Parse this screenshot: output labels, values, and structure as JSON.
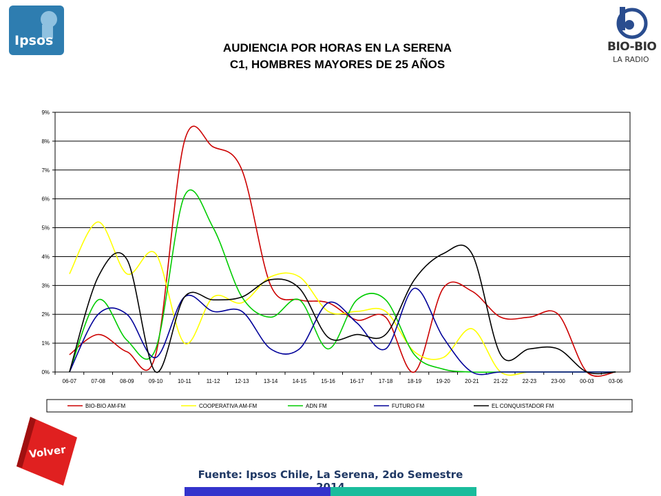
{
  "header": {
    "title_line1": "AUDIENCIA POR HORAS EN LA SERENA",
    "title_line2": "C1, HOMBRES MAYORES DE 25 AÑOS"
  },
  "logos": {
    "left": "Ipsos",
    "right_main": "BIO-BIO",
    "right_sub": "LA RADIO"
  },
  "footer": {
    "source": "Fuente: Ipsos Chile, La Serena, 2do Semestre 2014",
    "back_button": "Volver",
    "bar_colors": [
      "#3333cc",
      "#1abc9c"
    ]
  },
  "chart_data": {
    "type": "line",
    "categories": [
      "06-07",
      "07-08",
      "08-09",
      "09-10",
      "10-11",
      "11-12",
      "12-13",
      "13-14",
      "14-15",
      "15-16",
      "16-17",
      "17-18",
      "18-19",
      "19-20",
      "20-21",
      "21-22",
      "22-23",
      "23-00",
      "00-03",
      "03-06"
    ],
    "yticks": [
      "0%",
      "1%",
      "2%",
      "3%",
      "4%",
      "5%",
      "6%",
      "7%",
      "8%",
      "9%"
    ],
    "ylim": [
      0,
      9
    ],
    "grid": true,
    "legend_position": "bottom",
    "series": [
      {
        "name": "BIO-BIO AM-FM",
        "color": "#cc0000",
        "values": [
          0.6,
          1.3,
          0.7,
          0.6,
          8.0,
          7.8,
          7.0,
          3.0,
          2.5,
          2.4,
          1.8,
          1.9,
          0.0,
          2.9,
          2.8,
          1.9,
          1.9,
          2.0,
          0.0,
          0.0
        ]
      },
      {
        "name": "COOPERATIVA AM-FM",
        "color": "#ffff00",
        "values": [
          3.4,
          5.2,
          3.4,
          4.1,
          1.0,
          2.6,
          2.4,
          3.3,
          3.3,
          2.1,
          2.1,
          2.1,
          0.7,
          0.5,
          1.5,
          0.0,
          0.0,
          0.0,
          0.0,
          0.0
        ]
      },
      {
        "name": "ADN FM",
        "color": "#00cc00",
        "values": [
          0.0,
          2.5,
          1.1,
          0.8,
          6.1,
          5.0,
          2.6,
          1.9,
          2.5,
          0.8,
          2.5,
          2.5,
          0.6,
          0.1,
          0.0,
          0.0,
          0.0,
          0.0,
          0.0,
          0.0
        ]
      },
      {
        "name": "FUTURO FM",
        "color": "#000099",
        "values": [
          0.0,
          2.0,
          2.0,
          0.5,
          2.6,
          2.1,
          2.1,
          0.8,
          0.8,
          2.4,
          1.7,
          0.8,
          2.9,
          1.2,
          0.0,
          0.0,
          0.0,
          0.0,
          0.0,
          0.0
        ]
      },
      {
        "name": "EL CONQUISTADOR FM",
        "color": "#000000",
        "values": [
          0.0,
          3.3,
          3.9,
          0.0,
          2.6,
          2.5,
          2.6,
          3.2,
          2.9,
          1.2,
          1.3,
          1.3,
          3.2,
          4.1,
          4.1,
          0.6,
          0.8,
          0.8,
          0.0,
          0.0
        ]
      }
    ]
  }
}
